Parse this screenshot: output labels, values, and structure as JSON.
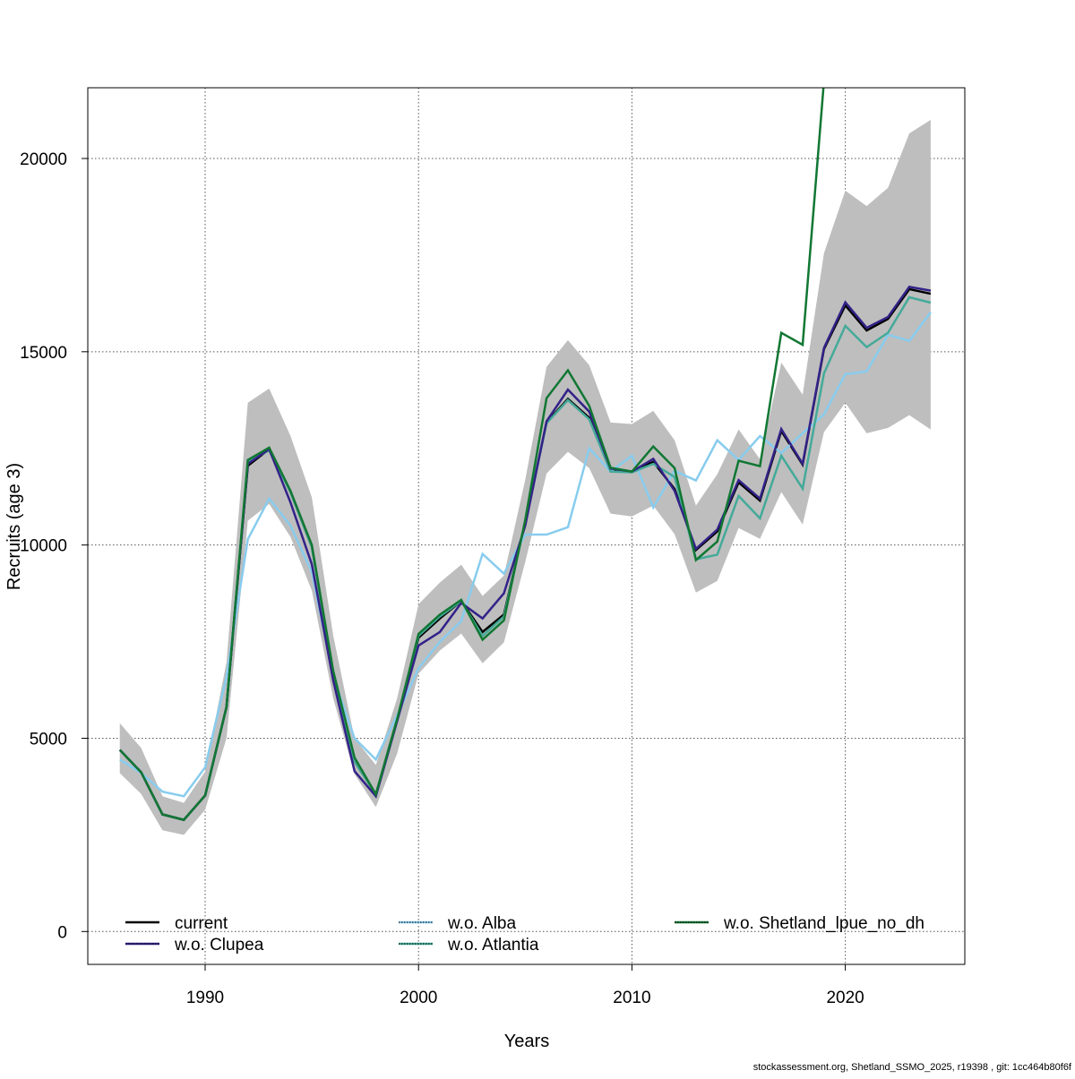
{
  "chart_data": {
    "type": "line",
    "title": "",
    "xlabel": "Years",
    "ylabel": "Recruits (age 3)",
    "xlim": [
      1984.5,
      2025.6
    ],
    "ylim": [
      -850,
      21830
    ],
    "grid": true,
    "x_ticks": [
      1990,
      2000,
      2010,
      2020
    ],
    "x_tick_labels": [
      "1990",
      "2000",
      "2010",
      "2020"
    ],
    "y_ticks": [
      0,
      5000,
      10000,
      15000,
      20000
    ],
    "y_tick_labels": [
      "0",
      "5000",
      "10000",
      "15000",
      "20000"
    ],
    "x": [
      1986,
      1987,
      1988,
      1989,
      1990,
      1991,
      1992,
      1993,
      1994,
      1995,
      1996,
      1997,
      1998,
      1999,
      2000,
      2001,
      2002,
      2003,
      2004,
      2005,
      2006,
      2007,
      2008,
      2009,
      2010,
      2011,
      2012,
      2013,
      2014,
      2015,
      2016,
      2017,
      2018,
      2019,
      2020,
      2021,
      2022,
      2023,
      2024
    ],
    "confidence_band": {
      "name": "current 95% CI",
      "color": "#bebebe",
      "upper": [
        5390,
        4750,
        3500,
        3330,
        4140,
        6970,
        13680,
        14050,
        12820,
        11230,
        7660,
        5000,
        4310,
        6040,
        8470,
        9030,
        9490,
        8680,
        9210,
        11690,
        14610,
        15300,
        14650,
        13170,
        13130,
        13470,
        12710,
        11020,
        11830,
        12990,
        12220,
        14720,
        13890,
        17550,
        19170,
        18770,
        19240,
        20650,
        21000
      ],
      "lower": [
        4100,
        3560,
        2620,
        2500,
        3150,
        5000,
        10630,
        11060,
        10210,
        8820,
        6040,
        4070,
        3220,
        4610,
        6670,
        7270,
        7710,
        6940,
        7480,
        9560,
        11850,
        12410,
        11990,
        10810,
        10740,
        11020,
        10280,
        8770,
        9070,
        10440,
        10160,
        11370,
        10530,
        12920,
        13680,
        12890,
        13030,
        13360,
        12990
      ]
    },
    "series": [
      {
        "name": "current",
        "color": "#000000",
        "dotted": false,
        "values": [
          4700,
          4120,
          3030,
          2890,
          3520,
          5810,
          12050,
          12480,
          11370,
          9950,
          6700,
          4400,
          3550,
          5500,
          7600,
          8100,
          8550,
          7750,
          8200,
          10600,
          13170,
          13780,
          13290,
          11940,
          11900,
          12150,
          11450,
          9870,
          10350,
          11620,
          11150,
          12950,
          12080,
          15070,
          16200,
          15550,
          15850,
          16620,
          16500
        ]
      },
      {
        "name": "w.o. Clupea",
        "color": "#332288",
        "dotted": true,
        "values": [
          4700,
          4120,
          3030,
          2890,
          3520,
          5810,
          12100,
          12480,
          11100,
          9500,
          6500,
          4150,
          3500,
          5450,
          7400,
          7750,
          8500,
          8100,
          8750,
          10500,
          13200,
          14020,
          13450,
          11980,
          11900,
          12230,
          11400,
          9900,
          10400,
          11680,
          11200,
          13000,
          12100,
          15100,
          16280,
          15620,
          15900,
          16680,
          16580
        ]
      },
      {
        "name": "w.o. Alba",
        "color": "#88ccee",
        "dotted": true,
        "values": [
          4450,
          4100,
          3620,
          3500,
          4250,
          6600,
          10150,
          11200,
          10500,
          9300,
          6600,
          5000,
          4450,
          5600,
          6810,
          7500,
          8030,
          9770,
          9260,
          10270,
          10270,
          10460,
          12500,
          11900,
          12310,
          10970,
          11920,
          11670,
          12710,
          12200,
          12820,
          12380,
          12890,
          13380,
          14420,
          14490,
          15440,
          15280,
          16020
        ]
      },
      {
        "name": "w.o. Atlantia",
        "color": "#44aa99",
        "dotted": true,
        "values": [
          4700,
          4120,
          3030,
          2890,
          3520,
          5810,
          12150,
          12450,
          11370,
          9950,
          6700,
          4400,
          3550,
          5500,
          7650,
          8150,
          8550,
          7650,
          8150,
          10600,
          13150,
          13750,
          13250,
          11900,
          11880,
          12100,
          11760,
          9630,
          9750,
          11270,
          10690,
          12310,
          11460,
          14440,
          15670,
          15120,
          15490,
          16410,
          16270
        ]
      },
      {
        "name": "w.o. Shetland_lpue_no_dh",
        "color": "#117733",
        "dotted": true,
        "values": [
          4700,
          4120,
          3030,
          2890,
          3520,
          5810,
          12200,
          12520,
          11400,
          10000,
          6750,
          4500,
          3550,
          5500,
          7700,
          8200,
          8580,
          7550,
          8050,
          10650,
          13800,
          14520,
          13600,
          12000,
          11900,
          12550,
          11990,
          9610,
          10090,
          12180,
          12040,
          15490,
          15180,
          22000,
          null,
          null,
          null,
          null,
          null
        ]
      }
    ],
    "legend_position": "bottom",
    "legend_entries": [
      "current",
      "w.o. Clupea",
      "w.o. Alba",
      "w.o. Atlantia",
      "w.o. Shetland_lpue_no_dh"
    ]
  },
  "footer": "stockassessment.org, Shetland_SSMO_2025, r19398 , git: 1cc464b80f6f"
}
